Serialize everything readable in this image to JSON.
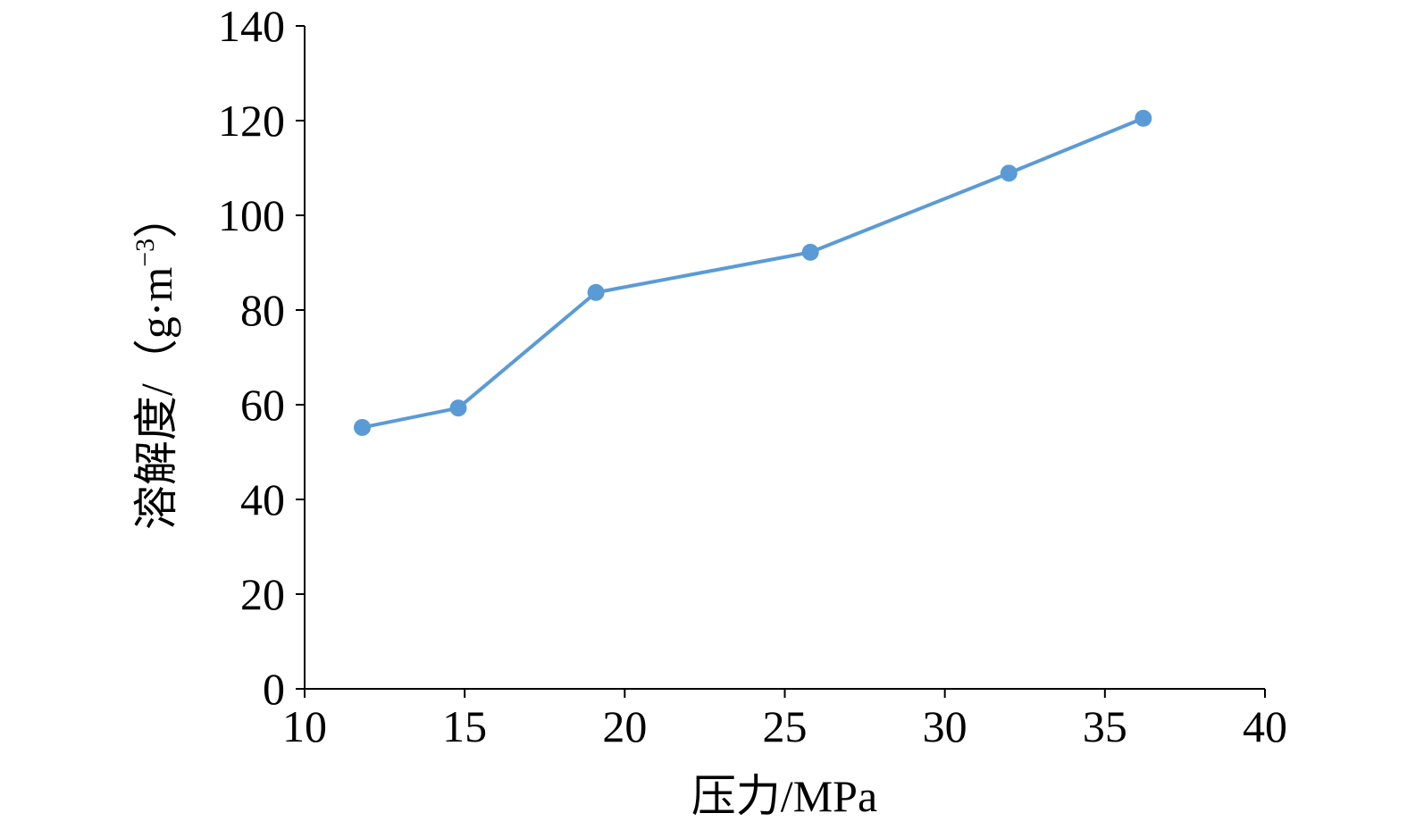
{
  "chart_data": {
    "type": "line",
    "title": "",
    "xlabel": "压力/MPa",
    "ylabel": "溶解度/（g·m",
    "ylabel_sup": "−3",
    "ylabel_close": "）",
    "xlim": [
      10,
      40
    ],
    "ylim": [
      0,
      140
    ],
    "x_ticks": [
      "10",
      "15",
      "20",
      "25",
      "30",
      "35",
      "40"
    ],
    "y_ticks": [
      "0",
      "20",
      "40",
      "60",
      "80",
      "100",
      "120",
      "140"
    ],
    "grid": false,
    "series": [
      {
        "x": [
          11.8,
          14.8,
          19.1,
          25.8,
          32.0,
          36.2
        ],
        "y": [
          55.2,
          59.3,
          83.7,
          92.2,
          108.9,
          120.5
        ]
      }
    ],
    "colors": {
      "series": "#5b9bd5",
      "axis": "#000000"
    }
  }
}
